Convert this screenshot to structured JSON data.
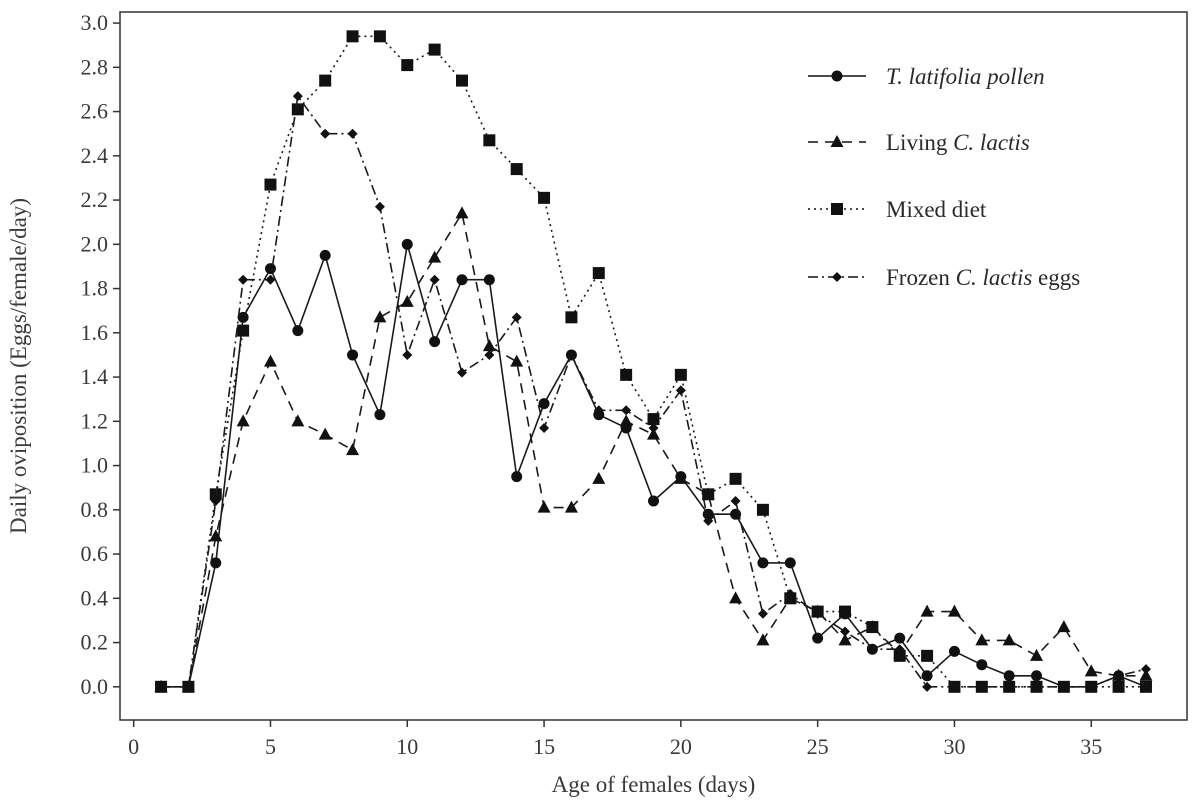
{
  "chart_data": {
    "type": "line",
    "xlabel": "Age of females (days)",
    "ylabel": "Daily oviposition (Eggs/female/day)",
    "xlim": [
      -0.5,
      38.5
    ],
    "ylim": [
      -0.15,
      3.05
    ],
    "xticks": [
      "0",
      "5",
      "10",
      "15",
      "20",
      "25",
      "30",
      "35"
    ],
    "yticks": [
      "0.0",
      "0.2",
      "0.4",
      "0.6",
      "0.8",
      "1.0",
      "1.2",
      "1.4",
      "1.6",
      "1.8",
      "2.0",
      "2.2",
      "2.4",
      "2.6",
      "2.8",
      "3.0"
    ],
    "grid": false,
    "legend_position": "top-right",
    "x": [
      1,
      2,
      3,
      4,
      5,
      6,
      7,
      8,
      9,
      10,
      11,
      12,
      13,
      14,
      15,
      16,
      17,
      18,
      19,
      20,
      21,
      22,
      23,
      24,
      25,
      26,
      27,
      28,
      29,
      30,
      31,
      32,
      33,
      34,
      35,
      36,
      37
    ],
    "series": [
      {
        "name_parts": [
          {
            "text": "T. latifolia pollen",
            "italic": true
          }
        ],
        "line": "solid",
        "marker": "circle",
        "color": "#1a1a1a",
        "values": [
          0,
          0,
          0.56,
          1.67,
          1.89,
          1.61,
          1.95,
          1.5,
          1.23,
          2.0,
          1.56,
          1.84,
          1.84,
          0.95,
          1.28,
          1.5,
          1.23,
          1.17,
          0.84,
          0.95,
          0.78,
          0.78,
          0.56,
          0.56,
          0.22,
          0.33,
          0.17,
          0.22,
          0.05,
          0.16,
          0.1,
          0.05,
          0.05,
          0,
          0,
          0.05,
          0
        ]
      },
      {
        "name_parts": [
          {
            "text": "Living ",
            "italic": false
          },
          {
            "text": "C. lactis",
            "italic": true
          }
        ],
        "line": "dashed",
        "marker": "triangle",
        "color": "#1a1a1a",
        "values": [
          0,
          0,
          0.68,
          1.2,
          1.47,
          1.2,
          1.14,
          1.07,
          1.67,
          1.74,
          1.94,
          2.14,
          1.54,
          1.47,
          0.81,
          0.81,
          0.94,
          1.2,
          1.14,
          0.94,
          0.87,
          0.4,
          0.21,
          0.4,
          0.34,
          0.21,
          0.27,
          0.15,
          0.34,
          0.34,
          0.21,
          0.21,
          0.14,
          0.27,
          0.07,
          0.05,
          0.05
        ]
      },
      {
        "name_parts": [
          {
            "text": "Mixed diet",
            "italic": false
          }
        ],
        "line": "dotted",
        "marker": "square",
        "color": "#1a1a1a",
        "values": [
          0,
          0,
          0.87,
          1.61,
          2.27,
          2.61,
          2.74,
          2.94,
          2.94,
          2.81,
          2.88,
          2.74,
          2.47,
          2.34,
          2.21,
          1.67,
          1.87,
          1.41,
          1.21,
          1.41,
          0.87,
          0.94,
          0.8,
          0.4,
          0.34,
          0.34,
          0.27,
          0.14,
          0.14,
          0,
          0,
          0,
          0,
          0,
          0,
          0,
          0
        ]
      },
      {
        "name_parts": [
          {
            "text": "Frozen ",
            "italic": false
          },
          {
            "text": "C. lactis",
            "italic": true
          },
          {
            "text": " eggs",
            "italic": false
          }
        ],
        "line": "dashdot",
        "marker": "diamond",
        "color": "#1a1a1a",
        "values": [
          0,
          0,
          0.84,
          1.84,
          1.84,
          2.67,
          2.5,
          2.5,
          2.17,
          1.5,
          1.84,
          1.42,
          1.5,
          1.67,
          1.17,
          1.5,
          1.25,
          1.25,
          1.17,
          1.34,
          0.75,
          0.84,
          0.33,
          0.42,
          0.33,
          0.25,
          0.17,
          0.17,
          0,
          0,
          0,
          0,
          0,
          0,
          0,
          0.05,
          0.08
        ]
      }
    ]
  }
}
